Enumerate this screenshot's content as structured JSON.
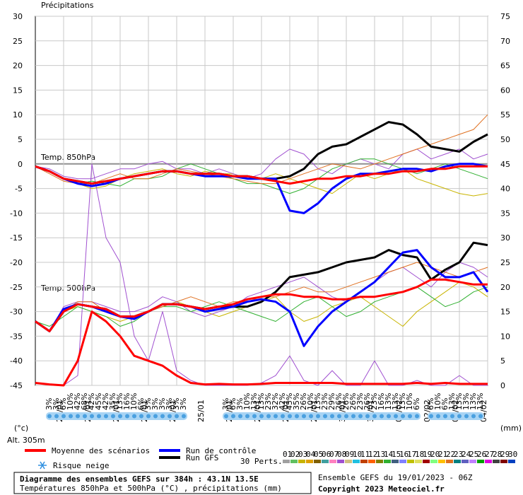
{
  "chart_data": {
    "type": "line",
    "title": "Diagramme des ensembles GEFS sur 384h : 43.1N 13.5E",
    "subtitle": "Températures 850hPa et 500hPa (°C) , précipitations (mm)",
    "run_info": "Ensemble GEFS du 19/01/2023 - 06Z",
    "copyright": "Copyright 2023 Meteociel.fr",
    "altitude": "Alt. 305m",
    "y_label": "(°c)",
    "y2_label": "(mm)",
    "precip_label": "Précipitations",
    "t850_label": "Temp. 850hPa",
    "t500_label": "Temp. 500hPa",
    "snow_label": "Risque neige",
    "perts_label": "30 Perts.",
    "grid": true,
    "xlim": [
      0,
      384
    ],
    "xticks": [
      {
        "value": 24,
        "label": "20/01"
      },
      {
        "value": 48,
        "label": "21/01"
      },
      {
        "value": 72,
        "label": "22/01"
      },
      {
        "value": 96,
        "label": "23/01"
      },
      {
        "value": 120,
        "label": "24/01"
      },
      {
        "value": 144,
        "label": "25/01"
      },
      {
        "value": 168,
        "label": "26/01"
      },
      {
        "value": 192,
        "label": "27/01"
      },
      {
        "value": 216,
        "label": "28/01"
      },
      {
        "value": 240,
        "label": "29/01"
      },
      {
        "value": 264,
        "label": "30/01"
      },
      {
        "value": 288,
        "label": "31/01"
      },
      {
        "value": 312,
        "label": "01/02"
      },
      {
        "value": 336,
        "label": "02/02"
      },
      {
        "value": 360,
        "label": "03/02"
      },
      {
        "value": 384,
        "label": "04/02"
      }
    ],
    "ylim": [
      -45,
      30
    ],
    "yticks": [
      -45,
      -40,
      -35,
      -30,
      -25,
      -20,
      -15,
      -10,
      -5,
      0,
      5,
      10,
      15,
      20,
      25,
      30
    ],
    "y2lim": [
      0,
      75
    ],
    "y2ticks": [
      0,
      5,
      10,
      15,
      20,
      25,
      30,
      35,
      40,
      45,
      50,
      55,
      60,
      65,
      70,
      75
    ],
    "x": [
      0,
      12,
      24,
      36,
      48,
      60,
      72,
      84,
      96,
      108,
      120,
      132,
      144,
      156,
      168,
      180,
      192,
      204,
      216,
      228,
      240,
      252,
      264,
      276,
      288,
      300,
      312,
      324,
      336,
      348,
      360,
      372,
      384
    ],
    "series": [
      {
        "name": "Moyenne des scénarios",
        "color": "#ff0000",
        "t850": [
          -0.5,
          -1.5,
          -3,
          -3.5,
          -4,
          -3.5,
          -3,
          -2.5,
          -2,
          -1.5,
          -1.5,
          -2,
          -2,
          -2,
          -2.5,
          -2.5,
          -3,
          -3.5,
          -4,
          -3.5,
          -3,
          -3,
          -2.5,
          -2.5,
          -2,
          -2,
          -1.5,
          -1.5,
          -1,
          -1,
          -0.5,
          -0.5,
          -0.5
        ],
        "t500": [
          -32,
          -34,
          -30,
          -28.5,
          -29,
          -29.5,
          -31,
          -31,
          -30,
          -28.5,
          -28.5,
          -29,
          -29.5,
          -29,
          -28.5,
          -27.5,
          -27,
          -26.5,
          -26.5,
          -27,
          -27,
          -27.5,
          -27.5,
          -27,
          -27,
          -26.5,
          -26,
          -25,
          -23.5,
          -23.5,
          -24,
          -24.5,
          -24.5
        ],
        "precip": [
          0.5,
          0.2,
          0,
          5,
          15,
          13,
          10,
          6,
          5,
          4,
          2,
          0.5,
          0.2,
          0.3,
          0.2,
          0.2,
          0.3,
          0.5,
          0.5,
          0.5,
          0.5,
          0.5,
          0.3,
          0.3,
          0.3,
          0.3,
          0.3,
          0.5,
          0.3,
          0.5,
          0.3,
          0.3,
          0.3
        ]
      },
      {
        "name": "Run de contrôle",
        "color": "#0000ff",
        "t850": [
          -0.5,
          -1.5,
          -3,
          -4,
          -4.5,
          -4,
          -3,
          -2.5,
          -2,
          -1.5,
          -1.5,
          -2,
          -2.5,
          -2.5,
          -2.5,
          -3,
          -3,
          -3,
          -9.5,
          -10,
          -8,
          -5,
          -3,
          -2,
          -2,
          -1.5,
          -1,
          -1,
          -1.5,
          -0.5,
          0,
          0,
          -0.5
        ],
        "t500": [
          -32,
          -34,
          -29.5,
          -28.5,
          -29,
          -30,
          -31,
          -31.5,
          -30,
          -28.5,
          -28.5,
          -29,
          -30,
          -29.5,
          -29,
          -28,
          -27.5,
          -28,
          -30,
          -37,
          -33,
          -30,
          -28,
          -26,
          -24,
          -21,
          -18,
          -17.5,
          -21,
          -23,
          -23,
          -22,
          -26
        ]
      },
      {
        "name": "Run GFS",
        "color": "#000000",
        "t850": [
          -0.5,
          -1.5,
          -3,
          -3.5,
          -4,
          -3.5,
          -3,
          -2.5,
          -2,
          -1.5,
          -1.5,
          -2,
          -2,
          -2,
          -2.5,
          -2.5,
          -3,
          -3,
          -2.5,
          -1,
          2,
          3.5,
          4,
          5.5,
          7,
          8.5,
          8,
          6,
          3.5,
          3,
          2.5,
          4.5,
          6
        ],
        "t500": [
          -32,
          -34,
          -30,
          -28.5,
          -29,
          -29.5,
          -31,
          -31,
          -30,
          -28.5,
          -28.5,
          -29,
          -29.5,
          -29,
          -29,
          -29,
          -28,
          -26,
          -23,
          -22.5,
          -22,
          -21,
          -20,
          -19.5,
          -19,
          -17.5,
          -18.5,
          -19,
          -23.5,
          -21.5,
          -20,
          -16,
          -16.5
        ]
      }
    ],
    "perturbations": [
      {
        "name": "01",
        "color": "#a0a0a0"
      },
      {
        "name": "02",
        "color": "#60c060"
      },
      {
        "name": "03",
        "color": "#c8b400",
        "t850": [
          -0.5,
          -1.5,
          -3,
          -4,
          -5,
          -4.5,
          -3,
          -2,
          -1.5,
          -1,
          -2,
          -2.5,
          -1.5,
          -2,
          -2,
          -3,
          -3,
          -2,
          -3,
          -4,
          -5,
          -6,
          -4,
          -2,
          -3,
          -2,
          -1,
          -3,
          -4,
          -5,
          -6,
          -6.5,
          -6
        ],
        "t500": [
          -32,
          -34,
          -30,
          -29,
          -30,
          -31,
          -32,
          -31,
          -30,
          -29,
          -28,
          -29,
          -30,
          -31,
          -30,
          -29,
          -28,
          -27,
          -30,
          -32,
          -31,
          -29,
          -28,
          -27,
          -29,
          -31,
          -33,
          -30,
          -28,
          -26,
          -24,
          -25,
          -27
        ]
      },
      {
        "name": "04",
        "color": "#e0a000"
      },
      {
        "name": "05",
        "color": "#806000"
      },
      {
        "name": "06",
        "color": "#40a0a0"
      },
      {
        "name": "07",
        "color": "#ff80c0"
      },
      {
        "name": "08",
        "color": "#a050d0",
        "t850": [
          -0.5,
          -1,
          -2.5,
          -3,
          -3,
          -2,
          -1,
          -1,
          0,
          0.5,
          -1,
          -1,
          -2,
          -1,
          -2,
          -3,
          -2,
          1,
          3,
          2,
          -1,
          -2,
          0,
          1,
          0,
          -1,
          2,
          3,
          1,
          2,
          3,
          1,
          2
        ],
        "t500": [
          -32,
          -34,
          -29,
          -28,
          -28,
          -29,
          -30,
          -30,
          -29,
          -27,
          -28,
          -30,
          -31,
          -30,
          -29,
          -27,
          -26,
          -25,
          -24,
          -23,
          -25,
          -27,
          -28,
          -26,
          -24,
          -22,
          -21,
          -23,
          -25,
          -22,
          -20,
          -21,
          -23
        ],
        "precip": [
          0.5,
          0.2,
          0,
          2,
          45,
          30,
          25,
          10,
          5,
          15,
          3,
          1,
          0,
          0,
          0,
          0,
          0.5,
          2,
          6,
          1,
          0,
          3,
          0,
          0,
          5,
          0,
          0,
          1,
          0,
          0,
          2,
          0,
          0
        ]
      },
      {
        "name": "09",
        "color": "#d0c080"
      },
      {
        "name": "10",
        "color": "#20c0e0"
      },
      {
        "name": "11",
        "color": "#c04000"
      },
      {
        "name": "12",
        "color": "#ff6000"
      },
      {
        "name": "13",
        "color": "#808000"
      },
      {
        "name": "14",
        "color": "#30b030",
        "t850": [
          -0.5,
          -1.5,
          -3,
          -4,
          -3.5,
          -4,
          -4.5,
          -3,
          -3,
          -2.5,
          -1,
          0,
          -1,
          -2,
          -3,
          -4,
          -4,
          -5,
          -6,
          -5,
          -3,
          -1,
          0,
          1,
          1,
          0,
          -1,
          -2,
          -1,
          0,
          -1,
          -2,
          -3
        ],
        "t500": [
          -32,
          -33,
          -31,
          -29,
          -30,
          -31,
          -33,
          -32,
          -30,
          -29,
          -29,
          -30,
          -29,
          -28,
          -29,
          -30,
          -31,
          -32,
          -30,
          -28,
          -27,
          -29,
          -31,
          -30,
          -28,
          -27,
          -26,
          -25,
          -27,
          -29,
          -28,
          -26,
          -25
        ]
      },
      {
        "name": "15",
        "color": "#406080"
      },
      {
        "name": "16",
        "color": "#8080ff"
      },
      {
        "name": "17",
        "color": "#c0c000"
      },
      {
        "name": "18",
        "color": "#e0e060"
      },
      {
        "name": "19",
        "color": "#a00000"
      },
      {
        "name": "20",
        "color": "#80ff80"
      },
      {
        "name": "21",
        "color": "#ffc000"
      },
      {
        "name": "22",
        "color": "#e07020",
        "t850": [
          -0.5,
          -2,
          -3.5,
          -4,
          -4,
          -3,
          -2,
          -3,
          -3,
          -2,
          -1,
          -1.5,
          -2,
          -2.5,
          -3,
          -3.5,
          -4,
          -4,
          -3,
          -2,
          -1,
          0,
          -0.5,
          -1,
          0,
          1,
          2,
          3,
          4,
          5,
          6,
          7,
          10
        ],
        "t500": [
          -32,
          -34,
          -30,
          -28,
          -28,
          -30,
          -31,
          -31,
          -30,
          -29,
          -28,
          -27,
          -28,
          -29,
          -28,
          -28,
          -27,
          -27,
          -26,
          -25,
          -26,
          -26,
          -25,
          -24,
          -23,
          -22,
          -21,
          -20,
          -21,
          -22,
          -23,
          -22,
          -21
        ]
      },
      {
        "name": "23",
        "color": "#008080"
      },
      {
        "name": "24",
        "color": "#6060c0"
      },
      {
        "name": "25",
        "color": "#c080ff"
      },
      {
        "name": "26",
        "color": "#00a000"
      },
      {
        "name": "27",
        "color": "#e000e0"
      },
      {
        "name": "28",
        "color": "#404040"
      },
      {
        "name": "29",
        "color": "#800000"
      },
      {
        "name": "30",
        "color": "#0040c0"
      }
    ],
    "snow_risk": {
      "x": [
        12,
        18,
        24,
        30,
        36,
        42,
        48,
        54,
        60,
        66,
        72,
        78,
        84,
        90,
        96,
        102,
        108,
        114,
        120,
        126,
        162,
        168,
        174,
        180,
        186,
        192,
        198,
        204,
        210,
        216,
        222,
        228,
        234,
        240,
        246,
        252,
        258,
        264,
        270,
        276,
        282,
        288,
        294,
        300,
        306,
        312,
        318,
        324,
        336,
        342,
        348,
        354,
        360,
        366,
        372,
        378
      ],
      "values": [
        3,
        3,
        6,
        10,
        42,
        68,
        42,
        45,
        42,
        35,
        13,
        16,
        10,
        6,
        3,
        3,
        3,
        3,
        3,
        3,
        3,
        6,
        3,
        10,
        13,
        13,
        23,
        32,
        42,
        45,
        35,
        26,
        10,
        13,
        23,
        29,
        26,
        26,
        26,
        23,
        26,
        23,
        16,
        13,
        13,
        13,
        10,
        6,
        6,
        10,
        6,
        13,
        13,
        13,
        13,
        13
      ],
      "value_labels": [
        "3%",
        "3%",
        "6%",
        "10%",
        "42%",
        "68%",
        "42%",
        "45%",
        "42%",
        "35%",
        "13%",
        "16%",
        "10%",
        "6%",
        "3%",
        "3%",
        "3%",
        "3%",
        "3%",
        "3%",
        "3%",
        "6%",
        "3%",
        "10%",
        "13%",
        "13%",
        "23%",
        "32%",
        "42%",
        "45%",
        "35%",
        "26%",
        "10%",
        "13%",
        "23%",
        "29%",
        "26%",
        "26%",
        "26%",
        "23%",
        "26%",
        "23%",
        "16%",
        "13%",
        "13%",
        "13%",
        "10%",
        "6%",
        "6%",
        "10%",
        "6%",
        "13%",
        "13%",
        "13%",
        "13%",
        "13%"
      ]
    }
  }
}
